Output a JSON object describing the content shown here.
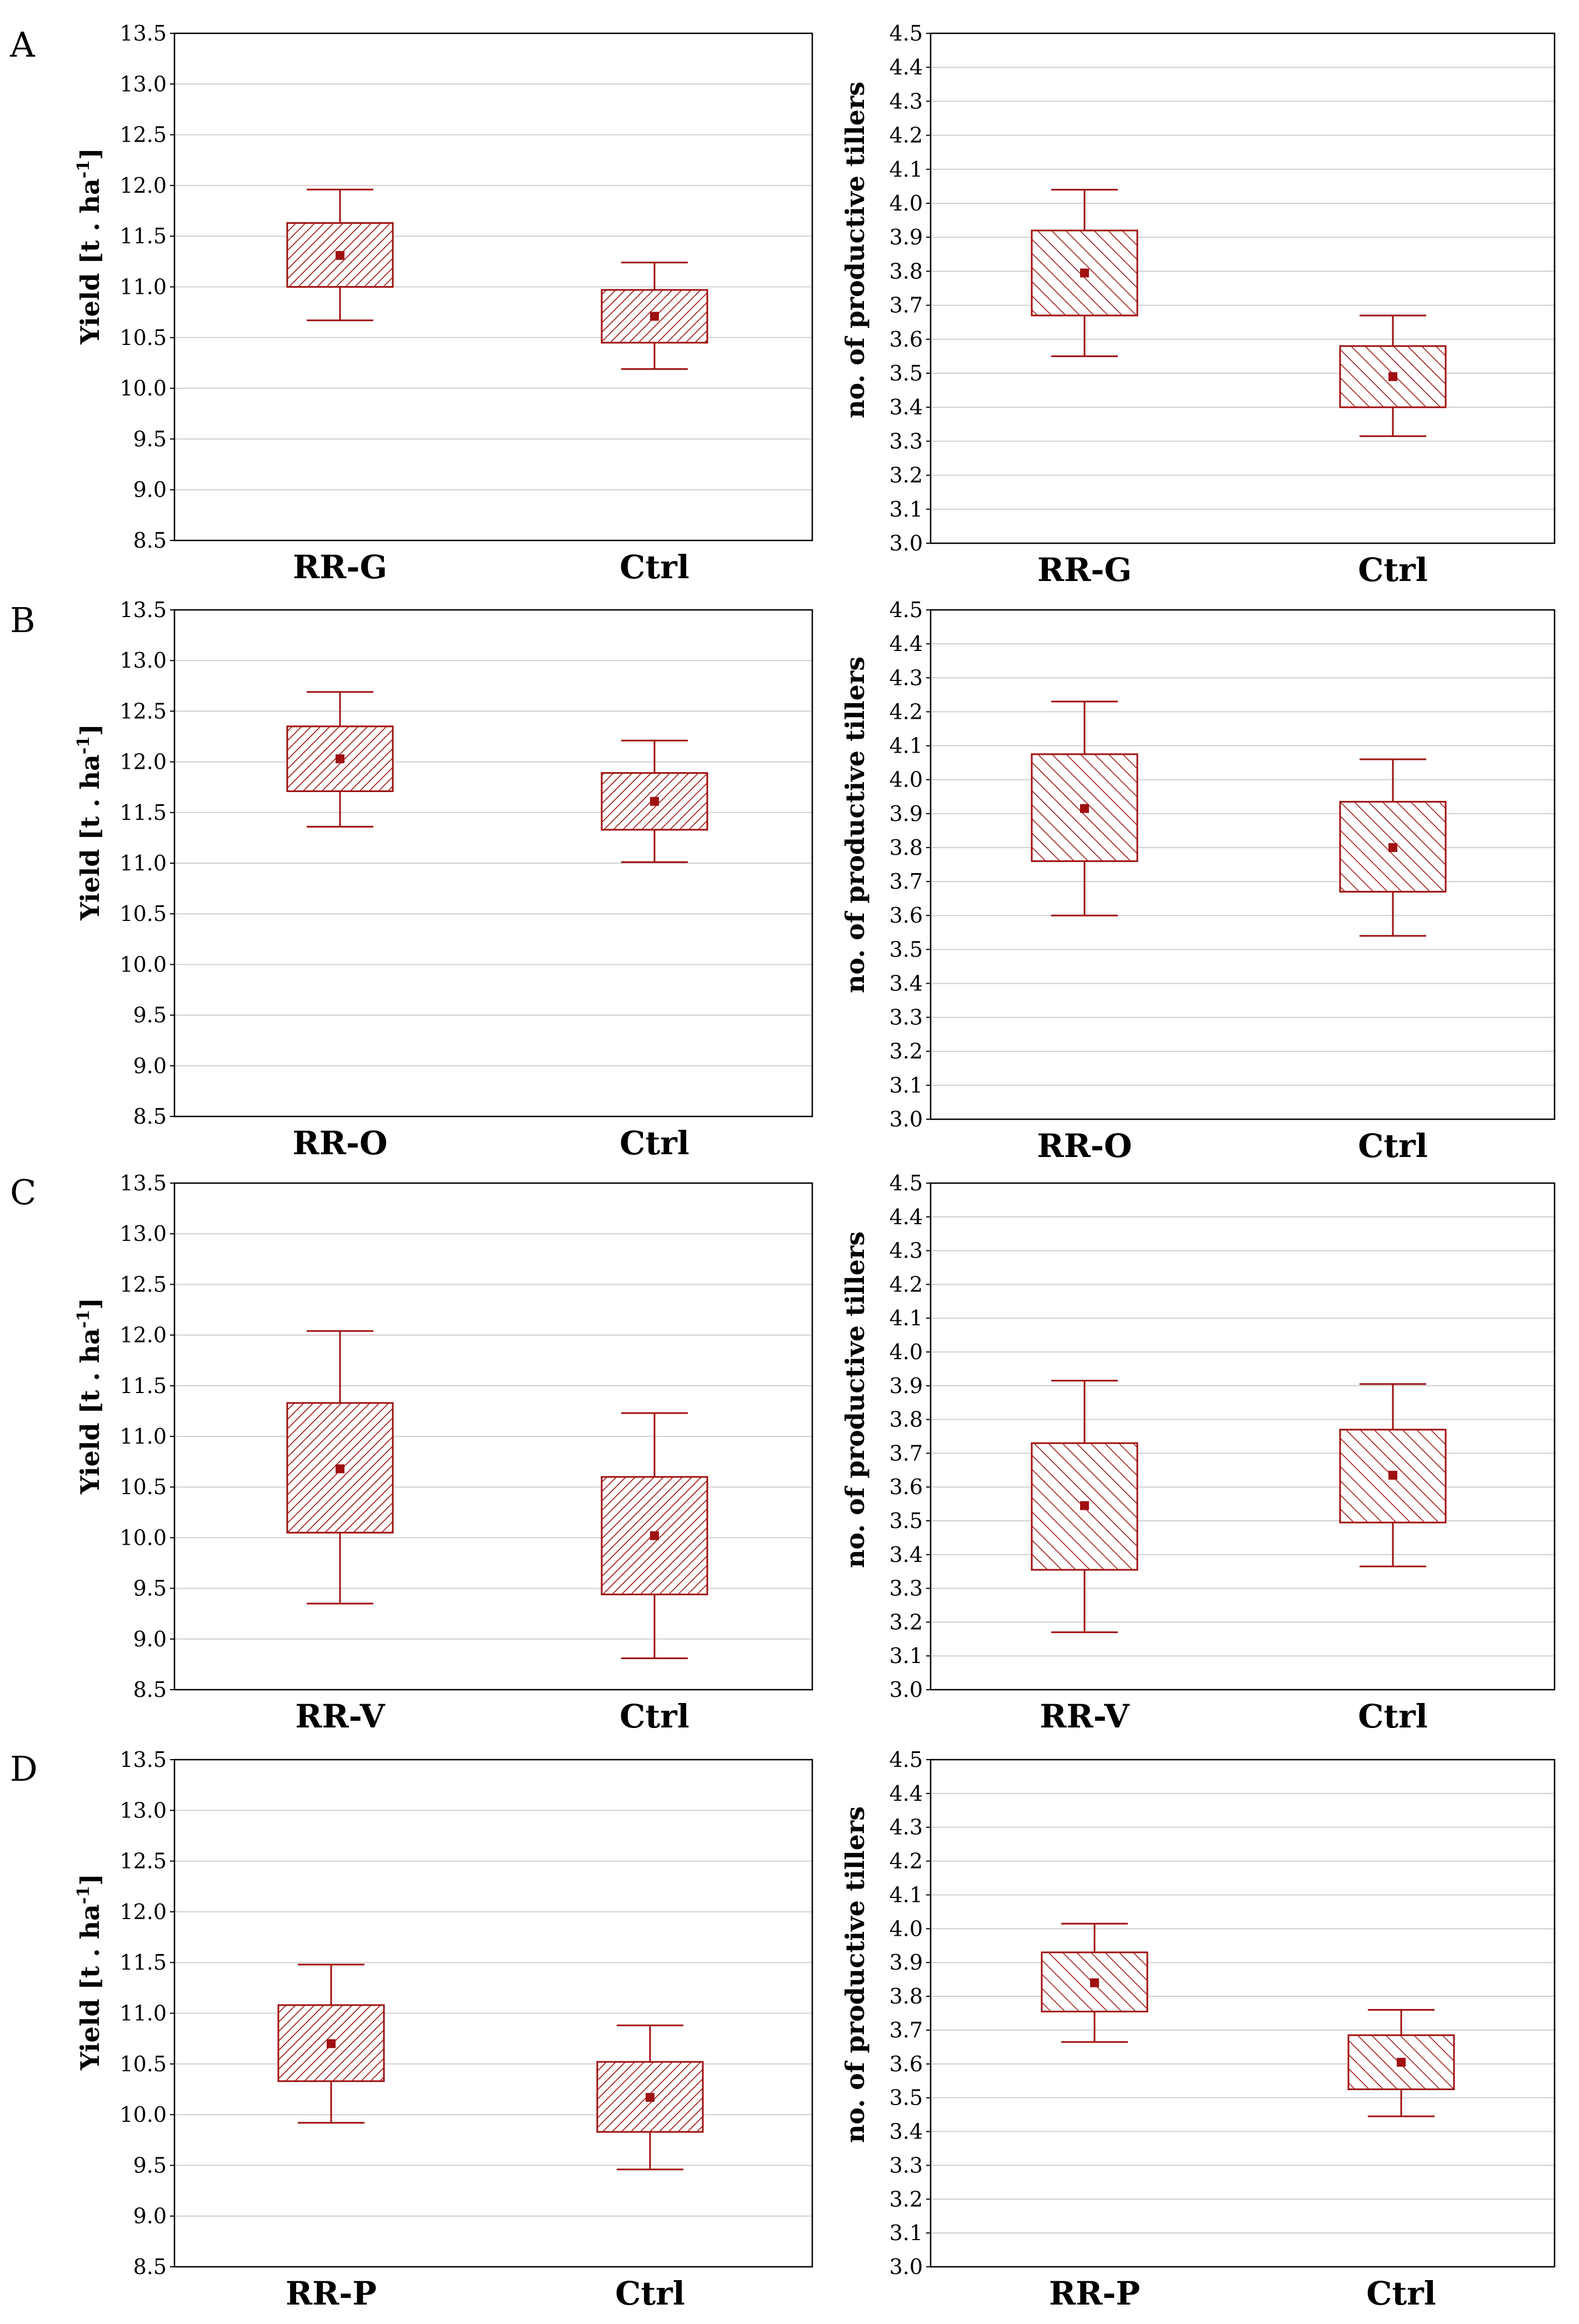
{
  "colors": {
    "box": "#a01010",
    "grid": "#d0d0d0",
    "frame": "#000000"
  },
  "axis_text": {
    "yield_main": "Yield [t . ha",
    "yield_sup": "-1",
    "yield_close": "]",
    "tillers": "no. of productive tillers"
  },
  "chart_data": [
    {
      "panel": "A",
      "type": "boxplot",
      "ylabel": "Yield [t . ha-1]",
      "ylim": [
        8.5,
        13.5
      ],
      "ystep": 0.5,
      "categories": [
        "RR-G",
        "Ctrl"
      ],
      "boxes": [
        {
          "mean": 11.31,
          "box_low": 11.0,
          "box_high": 11.63,
          "whisker_low": 10.67,
          "whisker_high": 11.96
        },
        {
          "mean": 10.71,
          "box_low": 10.45,
          "box_high": 10.97,
          "whisker_low": 10.19,
          "whisker_high": 11.24
        }
      ]
    },
    {
      "panel": "A",
      "type": "boxplot",
      "ylabel": "no. of productive tillers",
      "ylim": [
        3.0,
        4.5
      ],
      "ystep": 0.1,
      "categories": [
        "RR-G",
        "Ctrl"
      ],
      "boxes": [
        {
          "mean": 3.795,
          "box_low": 3.67,
          "box_high": 3.92,
          "whisker_low": 3.55,
          "whisker_high": 4.04
        },
        {
          "mean": 3.49,
          "box_low": 3.4,
          "box_high": 3.58,
          "whisker_low": 3.315,
          "whisker_high": 3.67
        }
      ]
    },
    {
      "panel": "B",
      "type": "boxplot",
      "ylabel": "Yield [t . ha-1]",
      "ylim": [
        8.5,
        13.5
      ],
      "ystep": 0.5,
      "categories": [
        "RR-O",
        "Ctrl"
      ],
      "boxes": [
        {
          "mean": 12.03,
          "box_low": 11.71,
          "box_high": 12.35,
          "whisker_low": 11.36,
          "whisker_high": 12.69
        },
        {
          "mean": 11.61,
          "box_low": 11.33,
          "box_high": 11.89,
          "whisker_low": 11.01,
          "whisker_high": 12.21
        }
      ]
    },
    {
      "panel": "B",
      "type": "boxplot",
      "ylabel": "no. of productive tillers",
      "ylim": [
        3.0,
        4.5
      ],
      "ystep": 0.1,
      "categories": [
        "RR-O",
        "Ctrl"
      ],
      "boxes": [
        {
          "mean": 3.915,
          "box_low": 3.76,
          "box_high": 4.075,
          "whisker_low": 3.6,
          "whisker_high": 4.23
        },
        {
          "mean": 3.8,
          "box_low": 3.67,
          "box_high": 3.935,
          "whisker_low": 3.54,
          "whisker_high": 4.06
        }
      ]
    },
    {
      "panel": "C",
      "type": "boxplot",
      "ylabel": "Yield [t . ha-1]",
      "ylim": [
        8.5,
        13.5
      ],
      "ystep": 0.5,
      "categories": [
        "RR-V",
        "Ctrl"
      ],
      "boxes": [
        {
          "mean": 10.68,
          "box_low": 10.05,
          "box_high": 11.33,
          "whisker_low": 9.35,
          "whisker_high": 12.04
        },
        {
          "mean": 10.02,
          "box_low": 9.44,
          "box_high": 10.6,
          "whisker_low": 8.81,
          "whisker_high": 11.23
        }
      ]
    },
    {
      "panel": "C",
      "type": "boxplot",
      "ylabel": "no. of productive tillers",
      "ylim": [
        3.0,
        4.5
      ],
      "ystep": 0.1,
      "categories": [
        "RR-V",
        "Ctrl"
      ],
      "boxes": [
        {
          "mean": 3.545,
          "box_low": 3.355,
          "box_high": 3.73,
          "whisker_low": 3.17,
          "whisker_high": 3.915
        },
        {
          "mean": 3.635,
          "box_low": 3.495,
          "box_high": 3.77,
          "whisker_low": 3.365,
          "whisker_high": 3.905
        }
      ]
    },
    {
      "panel": "D",
      "type": "boxplot",
      "ylabel": "Yield [t . ha-1]",
      "ylim": [
        8.5,
        13.5
      ],
      "ystep": 0.5,
      "categories": [
        "RR-P",
        "Ctrl"
      ],
      "boxes": [
        {
          "mean": 10.7,
          "box_low": 10.33,
          "box_high": 11.08,
          "whisker_low": 9.92,
          "whisker_high": 11.48
        },
        {
          "mean": 10.17,
          "box_low": 9.83,
          "box_high": 10.52,
          "whisker_low": 9.46,
          "whisker_high": 10.88
        }
      ]
    },
    {
      "panel": "D",
      "type": "boxplot",
      "ylabel": "no. of productive tillers",
      "ylim": [
        3.0,
        4.5
      ],
      "ystep": 0.1,
      "categories": [
        "RR-P",
        "Ctrl"
      ],
      "boxes": [
        {
          "mean": 3.84,
          "box_low": 3.755,
          "box_high": 3.93,
          "whisker_low": 3.665,
          "whisker_high": 4.015
        },
        {
          "mean": 3.605,
          "box_low": 3.525,
          "box_high": 3.685,
          "whisker_low": 3.445,
          "whisker_high": 3.76
        }
      ]
    }
  ]
}
